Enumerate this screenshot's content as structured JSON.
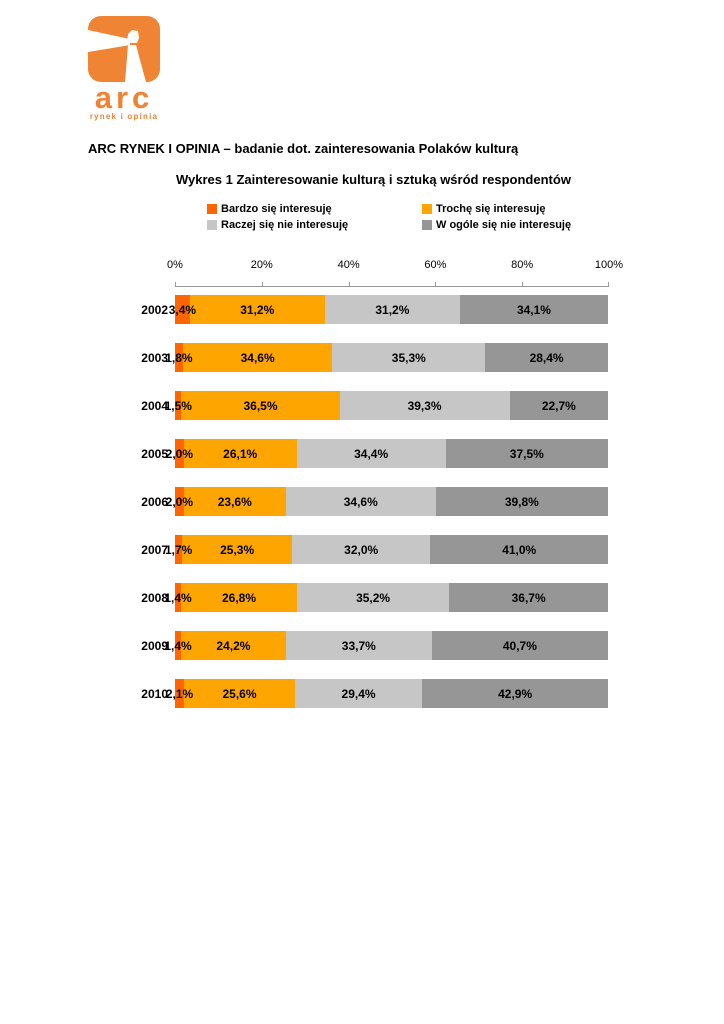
{
  "logo": {
    "text": "arc",
    "subtext": "rynek i opinia",
    "orange": "#EE8434"
  },
  "heading": "ARC RYNEK I OPINIA – badanie dot. zainteresowania Polaków kulturą",
  "chart_title": "Wykres 1 Zainteresowanie kulturą i sztuką wśród respondentów",
  "chart_data": {
    "type": "bar",
    "stacked": true,
    "orientation": "horizontal",
    "title": "Wykres 1 Zainteresowanie kulturą i sztuką wśród respondentów",
    "categories": [
      "2002",
      "2003",
      "2004",
      "2005",
      "2006",
      "2007",
      "2008",
      "2009",
      "2010"
    ],
    "series": [
      {
        "name": "Bardzo się interesuję",
        "color": "#FF6600",
        "values": [
          3.4,
          1.8,
          1.5,
          2.0,
          2.0,
          1.7,
          1.4,
          1.4,
          2.1
        ]
      },
      {
        "name": "Trochę się interesuję",
        "color": "#FFA500",
        "values": [
          31.2,
          34.6,
          36.5,
          26.1,
          23.6,
          25.3,
          26.8,
          24.2,
          25.6
        ]
      },
      {
        "name": "Raczej się nie interesuję",
        "color": "#C6C6C6",
        "values": [
          31.2,
          35.3,
          39.3,
          34.4,
          34.6,
          32.0,
          35.2,
          33.7,
          29.4
        ]
      },
      {
        "name": "W ogóle się nie interesuję",
        "color": "#969696",
        "values": [
          34.1,
          28.4,
          22.7,
          37.5,
          39.8,
          41.0,
          36.7,
          40.7,
          42.9
        ]
      }
    ],
    "x_axis": {
      "ticks": [
        "0%",
        "20%",
        "40%",
        "60%",
        "80%",
        "100%"
      ],
      "range": [
        0,
        100
      ]
    },
    "value_label_format": "percent-comma-1dp",
    "legend_position": "top",
    "grid": false
  }
}
